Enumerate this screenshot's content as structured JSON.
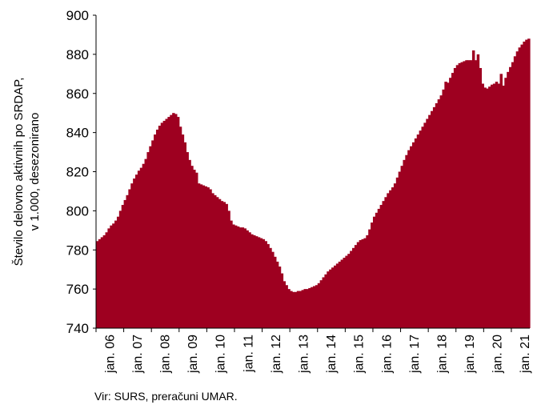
{
  "chart_data": {
    "type": "area",
    "ylabel": "Število delovno aktivnih po SRDAP, v 1.000, desezonirano",
    "ylim": [
      740,
      900
    ],
    "yticks": [
      740,
      760,
      780,
      800,
      820,
      840,
      860,
      880,
      900
    ],
    "xticks": [
      "jan. 06",
      "jan. 07",
      "jan. 08",
      "jan. 09",
      "jan. 10",
      "jan. 11",
      "jan. 12",
      "jan. 13",
      "jan. 14",
      "jan. 15",
      "jan. 16",
      "jan. 17",
      "jan. 18",
      "jan. 19",
      "jan. 20",
      "jan. 21"
    ],
    "x_start": "2006-01",
    "color": "#9e0020",
    "grid": false,
    "series": [
      {
        "values": [
          784.5,
          785.5,
          786.5,
          787.5,
          789.0,
          791.0,
          792.5,
          793.5,
          795.0,
          797.0,
          800.0,
          803.0,
          805.5,
          808.0,
          811.0,
          814.0,
          816.5,
          818.5,
          820.5,
          822.0,
          824.0,
          826.5,
          830.0,
          833.0,
          836.0,
          839.0,
          841.5,
          843.5,
          845.0,
          846.0,
          847.0,
          848.0,
          849.0,
          850.0,
          849.5,
          848.0,
          843.0,
          839.0,
          835.0,
          830.0,
          826.0,
          823.0,
          821.0,
          819.5,
          814.0,
          813.5,
          813.0,
          812.5,
          812.0,
          811.0,
          809.0,
          808.0,
          807.0,
          806.0,
          805.0,
          804.5,
          803.5,
          800.0,
          795.0,
          793.0,
          792.5,
          792.0,
          791.5,
          791.5,
          791.0,
          790.0,
          789.0,
          788.0,
          787.5,
          787.0,
          786.5,
          786.0,
          785.5,
          784.5,
          783.0,
          781.0,
          779.0,
          776.5,
          774.0,
          771.5,
          768.0,
          764.0,
          762.0,
          760.0,
          759.0,
          758.5,
          758.5,
          759.0,
          759.0,
          759.5,
          760.0,
          760.0,
          760.5,
          761.0,
          761.5,
          762.0,
          763.0,
          764.5,
          766.0,
          767.5,
          769.0,
          770.0,
          771.0,
          772.0,
          773.0,
          774.0,
          775.0,
          776.0,
          777.0,
          778.0,
          779.5,
          781.0,
          782.5,
          784.0,
          785.0,
          785.5,
          786.0,
          787.5,
          790.5,
          794.0,
          797.0,
          799.0,
          801.0,
          803.0,
          805.0,
          807.0,
          809.0,
          810.5,
          812.0,
          814.0,
          817.0,
          820.0,
          823.0,
          826.0,
          828.5,
          831.0,
          833.0,
          835.0,
          837.0,
          839.0,
          841.0,
          843.0,
          845.0,
          847.0,
          849.0,
          851.0,
          853.0,
          855.0,
          857.0,
          859.0,
          862.0,
          866.0,
          865.5,
          868.0,
          870.5,
          873.0,
          874.5,
          875.5,
          876.0,
          876.5,
          877.0,
          877.0,
          877.0,
          882.0,
          877.0,
          880.0,
          873.0,
          865.0,
          863.0,
          862.5,
          863.5,
          864.5,
          865.0,
          866.0,
          865.0,
          870.0,
          864.0,
          868.0,
          871.0,
          873.5,
          876.0,
          879.0,
          881.5,
          883.5,
          885.0,
          886.5,
          887.5,
          888.0
        ]
      }
    ]
  },
  "source": "Vir: SURS, preračuni UMAR."
}
